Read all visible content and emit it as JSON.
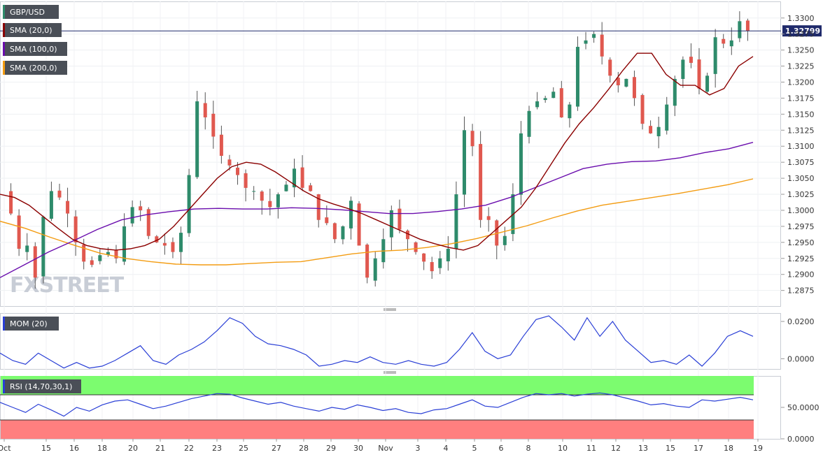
{
  "watermark": "FXSTREET",
  "chart_data": [
    {
      "type": "candlestick",
      "panel": "price",
      "symbol": "GBP/USD",
      "indicators": [
        {
          "name": "SMA (20,0)",
          "color": "#8b0000"
        },
        {
          "name": "SMA (100,0)",
          "color": "#6a0dad"
        },
        {
          "name": "SMA (200,0)",
          "color": "#f39c12"
        }
      ],
      "last_price_label": "1.32799",
      "last_price": 1.32799,
      "ylim": [
        1.2855,
        1.3315
      ],
      "yticks": [
        "1.3300",
        "1.3275",
        "1.3250",
        "1.3225",
        "1.3200",
        "1.3175",
        "1.3150",
        "1.3125",
        "1.3100",
        "1.3075",
        "1.3050",
        "1.3025",
        "1.3000",
        "1.2975",
        "1.2950",
        "1.2925",
        "1.2900",
        "1.2875"
      ],
      "ytick_values": [
        1.33,
        1.3275,
        1.325,
        1.3225,
        1.32,
        1.3175,
        1.315,
        1.3125,
        1.31,
        1.3075,
        1.305,
        1.3025,
        1.3,
        1.2975,
        1.295,
        1.2925,
        1.29,
        1.2875
      ],
      "x_tick_labels": [
        "Oct",
        "15",
        "16",
        "18",
        "20",
        "21",
        "22",
        "23",
        "25",
        "27",
        "28",
        "29",
        "30",
        "Nov",
        "3",
        "4",
        "5",
        "6",
        "8",
        "10",
        "11",
        "12",
        "13",
        "15",
        "17",
        "18",
        "19"
      ],
      "close_path": [
        1.303,
        1.2995,
        1.294,
        1.2945,
        1.2895,
        1.299,
        1.303,
        1.302,
        1.2995,
        1.295,
        1.292,
        1.2915,
        1.293,
        1.2935,
        1.2925,
        1.2975,
        1.3005,
        1.3,
        1.296,
        1.295,
        1.2945,
        1.2935,
        1.2965,
        1.3055,
        1.317,
        1.3145,
        1.3115,
        1.3085,
        1.307,
        1.3055,
        1.3035,
        1.303,
        1.3015,
        1.3005,
        1.3025,
        1.304,
        1.3065,
        1.3035,
        1.303,
        1.2985,
        1.298,
        1.2955,
        1.2975,
        1.3015,
        1.2945,
        1.2895,
        1.2925,
        1.2955,
        1.3,
        1.297,
        1.2955,
        1.2935,
        1.292,
        1.2905,
        1.2925,
        1.294,
        1.3025,
        1.3125,
        1.31,
        1.2985,
        1.2985,
        1.2945,
        1.296,
        1.3025,
        1.312,
        1.3155,
        1.317,
        1.3175,
        1.3185,
        1.3145,
        1.3165,
        1.3255,
        1.3265,
        1.3275,
        1.324,
        1.321,
        1.3195,
        1.3205,
        1.3175,
        1.3135,
        1.312,
        1.313,
        1.3165,
        1.3205,
        1.3235,
        1.323,
        1.319,
        1.321,
        1.327,
        1.326,
        1.3265,
        1.3295,
        1.32799
      ],
      "sma20": [
        1.3025,
        1.302,
        1.3008,
        1.299,
        1.2972,
        1.2955,
        1.2945,
        1.294,
        1.2938,
        1.294,
        1.2945,
        1.2955,
        1.2975,
        1.3,
        1.3025,
        1.305,
        1.3068,
        1.3075,
        1.3072,
        1.306,
        1.3045,
        1.303,
        1.3018,
        1.301,
        1.3003,
        1.2995,
        1.2985,
        1.2975,
        1.2965,
        1.2955,
        1.2948,
        1.2942,
        1.2938,
        1.2945,
        1.2965,
        1.2985,
        1.3005,
        1.3035,
        1.307,
        1.3105,
        1.3135,
        1.316,
        1.3188,
        1.3218,
        1.3245,
        1.3245,
        1.3212,
        1.3195,
        1.3195,
        1.318,
        1.319,
        1.3225,
        1.324
      ],
      "sma100": [
        1.2895,
        1.2915,
        1.2935,
        1.2952,
        1.297,
        1.2985,
        1.2993,
        1.2998,
        1.3002,
        1.3003,
        1.3002,
        1.3002,
        1.3004,
        1.3003,
        1.3001,
        1.2998,
        1.2995,
        1.2995,
        1.2998,
        1.3002,
        1.3008,
        1.302,
        1.3035,
        1.305,
        1.3065,
        1.3072,
        1.3076,
        1.3077,
        1.3082,
        1.309,
        1.3096,
        1.3106
      ],
      "sma200": [
        1.2983,
        1.2972,
        1.2958,
        1.2945,
        1.2933,
        1.2925,
        1.292,
        1.2916,
        1.2915,
        1.2915,
        1.2917,
        1.2919,
        1.292,
        1.2926,
        1.2932,
        1.2936,
        1.2938,
        1.2942,
        1.2948,
        1.2956,
        1.2966,
        1.2976,
        1.2988,
        1.2999,
        1.3008,
        1.3014,
        1.302,
        1.3026,
        1.3033,
        1.304,
        1.3049
      ]
    },
    {
      "type": "line",
      "panel": "momentum",
      "name": "MOM (20)",
      "yticks": [
        "0.0200",
        "0.0000"
      ],
      "ytick_values": [
        0.02,
        0.0
      ],
      "ylim": [
        -0.0055,
        0.0245
      ],
      "values": [
        0.003,
        -0.001,
        -0.003,
        0.003,
        -0.001,
        -0.005,
        -0.002,
        -0.005,
        -0.004,
        -0.001,
        0.003,
        0.007,
        -0.001,
        -0.003,
        0.002,
        0.005,
        0.009,
        0.015,
        0.022,
        0.019,
        0.012,
        0.008,
        0.007,
        0.005,
        0.002,
        -0.004,
        -0.003,
        -0.001,
        -0.002,
        0.001,
        -0.002,
        -0.003,
        -0.001,
        -0.003,
        -0.004,
        -0.002,
        0.005,
        0.014,
        0.004,
        0.0,
        0.002,
        0.012,
        0.021,
        0.023,
        0.017,
        0.01,
        0.022,
        0.012,
        0.02,
        0.01,
        0.004,
        -0.002,
        -0.001,
        -0.003,
        0.002,
        -0.004,
        0.003,
        0.012,
        0.015,
        0.012
      ]
    },
    {
      "type": "line",
      "panel": "rsi",
      "name": "RSI (14,70,30,1)",
      "yticks": [
        "50.0000",
        "0.0000"
      ],
      "ytick_values": [
        50,
        0
      ],
      "ylim": [
        0,
        100
      ],
      "overbought": 70,
      "oversold": 30,
      "overbought_color": "#7cfc6f",
      "oversold_color": "#ff7f7f",
      "values": [
        58,
        50,
        42,
        55,
        46,
        36,
        50,
        44,
        54,
        60,
        62,
        55,
        48,
        52,
        58,
        64,
        68,
        72,
        71,
        65,
        60,
        55,
        58,
        52,
        48,
        44,
        50,
        47,
        54,
        50,
        45,
        48,
        42,
        40,
        46,
        48,
        55,
        62,
        52,
        50,
        58,
        66,
        72,
        70,
        72,
        68,
        71,
        73,
        70,
        65,
        60,
        54,
        56,
        52,
        50,
        62,
        60,
        63,
        66,
        62
      ]
    }
  ]
}
